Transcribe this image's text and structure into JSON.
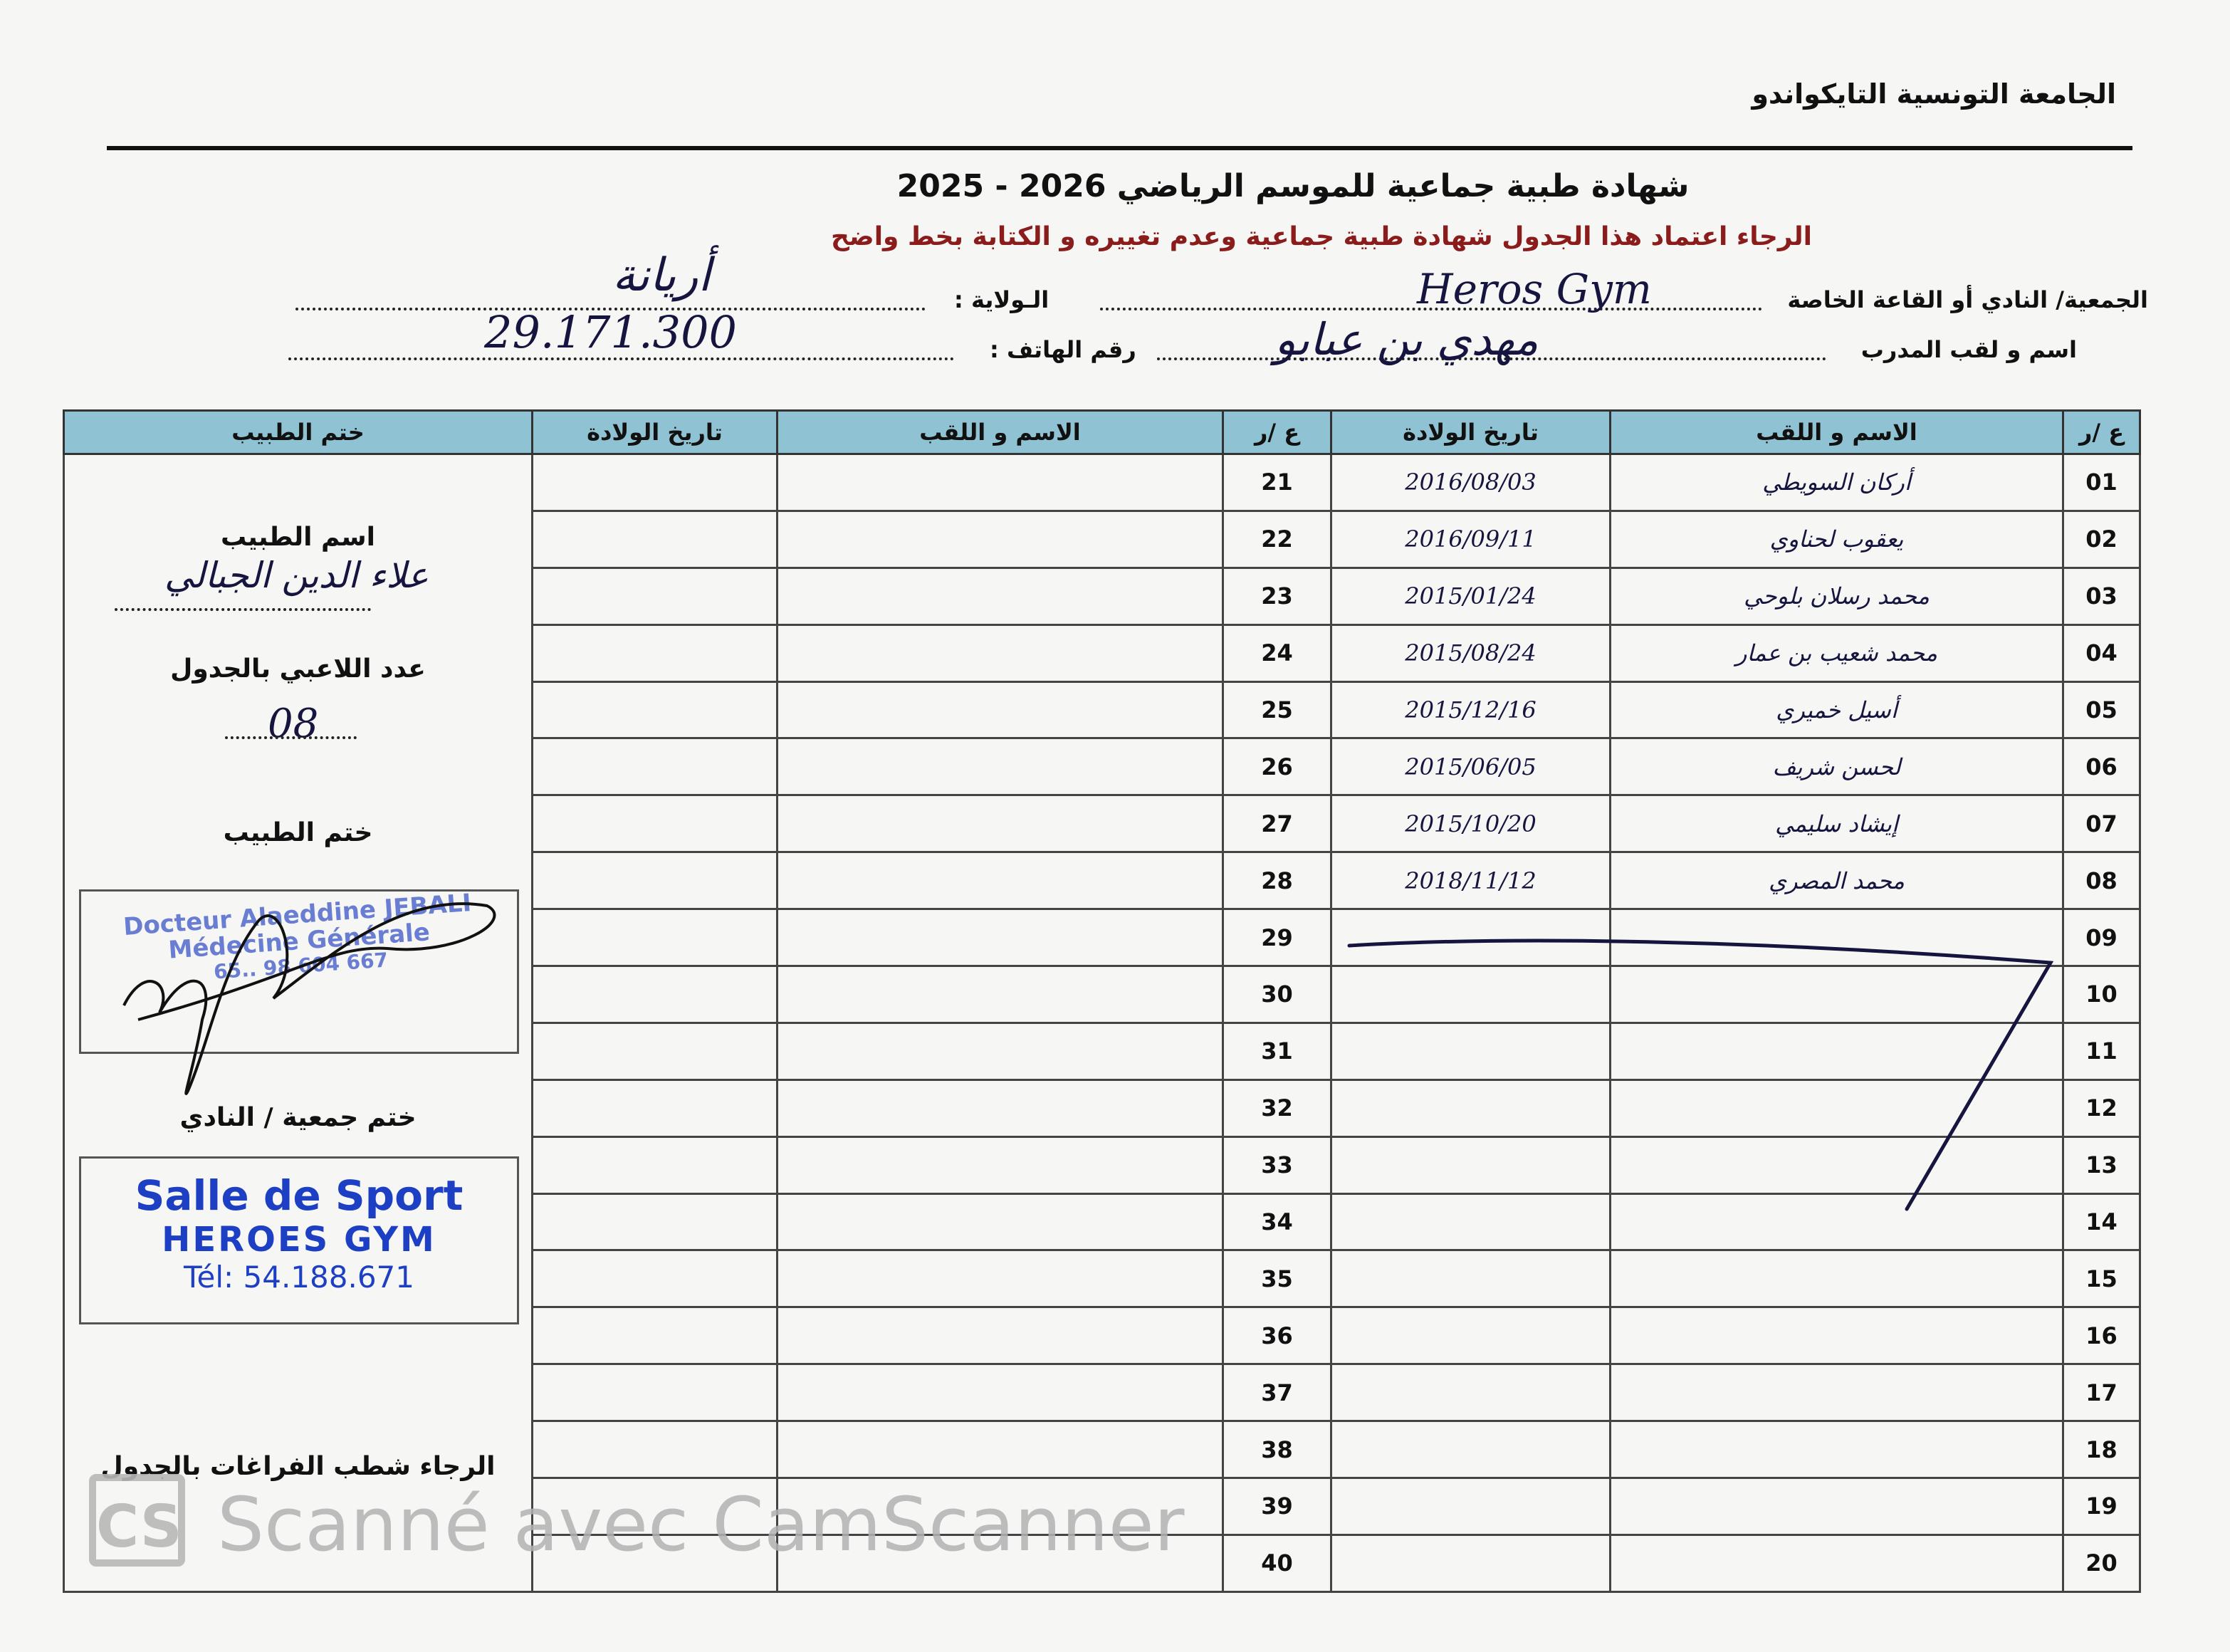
{
  "header": {
    "federation": "الجامعة التونسية التايكواندو",
    "title": "شهادة طبية جماعية  للموسم الرياضي  2026 - 2025",
    "instruction": "الرجاء اعتماد هذا الجدول  شهادة طبية جماعية وعدم تغييره و الكتابة بخط واضح"
  },
  "fields": {
    "club_label": "الجمعية/ النادي أو القاعة الخاصة",
    "club_value": "Heros Gym",
    "wilaya_label": "الـولاية :",
    "wilaya_value": "أريانة",
    "coach_label": "اسم و لقب المدرب",
    "coach_value": "مهدي بن عبابو",
    "phone_label": "رقم الهاتف :",
    "phone_value": "29.171.300"
  },
  "table": {
    "headers": {
      "num": "ع /ر",
      "name": "الاسم و اللقب",
      "dob": "تاريخ الولادة",
      "stamp": "ختم الطبيب"
    },
    "rows_right": [
      {
        "num": "01",
        "name": "أركان السويطي",
        "dob": "2016/08/03"
      },
      {
        "num": "02",
        "name": "يعقوب لحناوي",
        "dob": "2016/09/11"
      },
      {
        "num": "03",
        "name": "محمد رسلان بلوحي",
        "dob": "2015/01/24"
      },
      {
        "num": "04",
        "name": "محمد شعيب بن عمار",
        "dob": "2015/08/24"
      },
      {
        "num": "05",
        "name": "أسيل خميري",
        "dob": "2015/12/16"
      },
      {
        "num": "06",
        "name": "لحسن شريف",
        "dob": "2015/06/05"
      },
      {
        "num": "07",
        "name": "إيشاد سليمي",
        "dob": "2015/10/20"
      },
      {
        "num": "08",
        "name": "محمد المصري",
        "dob": "2018/11/12"
      },
      {
        "num": "09",
        "name": "",
        "dob": ""
      },
      {
        "num": "10",
        "name": "",
        "dob": ""
      },
      {
        "num": "11",
        "name": "",
        "dob": ""
      },
      {
        "num": "12",
        "name": "",
        "dob": ""
      },
      {
        "num": "13",
        "name": "",
        "dob": ""
      },
      {
        "num": "14",
        "name": "",
        "dob": ""
      },
      {
        "num": "15",
        "name": "",
        "dob": ""
      },
      {
        "num": "16",
        "name": "",
        "dob": ""
      },
      {
        "num": "17",
        "name": "",
        "dob": ""
      },
      {
        "num": "18",
        "name": "",
        "dob": ""
      },
      {
        "num": "19",
        "name": "",
        "dob": ""
      },
      {
        "num": "20",
        "name": "",
        "dob": ""
      }
    ],
    "rows_left_nums": [
      "21",
      "22",
      "23",
      "24",
      "25",
      "26",
      "27",
      "28",
      "29",
      "30",
      "31",
      "32",
      "33",
      "34",
      "35",
      "36",
      "37",
      "38",
      "39",
      "40"
    ]
  },
  "doctor_panel": {
    "doctor_name_label": "اسم الطبيب",
    "doctor_name_value": "علاء الدين الجبالي",
    "player_count_label": "عدد اللاعبي بالجدول",
    "player_count_value": "08",
    "doctor_stamp_label": "ختم الطبيب",
    "doctor_stamp_line1": "Docteur Alaeddine JEBALI",
    "doctor_stamp_line2": "Médecine Générale",
    "doctor_stamp_line3": "65.. 98 604 667",
    "club_stamp_label": "ختم جمعية / النادي",
    "club_stamp_line1": "Salle de Sport",
    "club_stamp_line2": "HEROES GYM",
    "club_stamp_line3": "Tél: 54.188.671",
    "footer_note": "الرجاء شطب  الفراغات بالجدول"
  },
  "watermark": {
    "logo": "CS",
    "text": "Scanné avec CamScanner"
  },
  "colors": {
    "header_bg": "#8fc2d2",
    "instruction": "#8a1c1c",
    "stamp_blue": "#1d3fc4",
    "ink": "#15153f"
  }
}
